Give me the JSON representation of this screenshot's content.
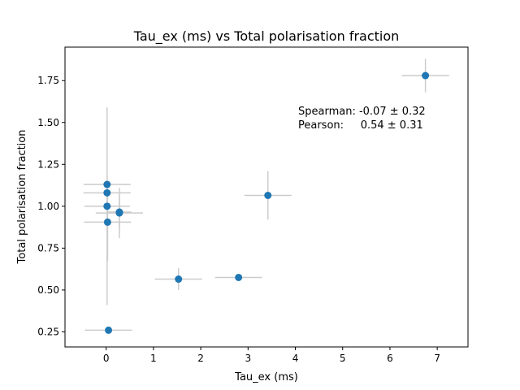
{
  "chart_data": {
    "type": "scatter",
    "title": "Tau_ex (ms) vs Total polarisation fraction",
    "xlabel": "Tau_ex (ms)",
    "ylabel": "Total polarisation fraction",
    "xlim": [
      -0.87,
      7.65
    ],
    "ylim": [
      0.16,
      1.95
    ],
    "xticks": [
      0,
      1,
      2,
      3,
      4,
      5,
      6,
      7
    ],
    "yticks": [
      0.25,
      0.5,
      0.75,
      1.0,
      1.25,
      1.5,
      1.75
    ],
    "ytick_labels": [
      "0.25",
      "0.50",
      "0.75",
      "1.00",
      "1.25",
      "1.50",
      "1.75"
    ],
    "grid": false,
    "colors": {
      "point": "#1f77b4",
      "errorbar": "#cccccc"
    },
    "annotations": [
      "Spearman: -0.07 ± 0.32",
      "Pearson:     0.54 ± 0.31"
    ],
    "points": [
      {
        "x": 0.02,
        "y": 1.13,
        "xerr": 0.5,
        "yerr": 0.0
      },
      {
        "x": 0.02,
        "y": 1.08,
        "xerr": 0.5,
        "yerr": 0.0
      },
      {
        "x": 0.02,
        "y": 1.0,
        "xerr": 0.48,
        "yerr": 0.59
      },
      {
        "x": 0.03,
        "y": 0.905,
        "xerr": 0.5,
        "yerr": 0.23
      },
      {
        "x": 0.28,
        "y": 0.96,
        "xerr": 0.5,
        "yerr": 0.15
      },
      {
        "x": 0.28,
        "y": 0.965,
        "xerr": 0.25,
        "yerr": 0.1
      },
      {
        "x": 0.05,
        "y": 0.26,
        "xerr": 0.5,
        "yerr": 0.0
      },
      {
        "x": 1.53,
        "y": 0.565,
        "xerr": 0.5,
        "yerr": 0.065
      },
      {
        "x": 2.8,
        "y": 0.575,
        "xerr": 0.5,
        "yerr": 0.0
      },
      {
        "x": 3.42,
        "y": 1.065,
        "xerr": 0.5,
        "yerr": 0.145
      },
      {
        "x": 6.75,
        "y": 1.78,
        "xerr": 0.5,
        "yerr": 0.1
      }
    ]
  }
}
